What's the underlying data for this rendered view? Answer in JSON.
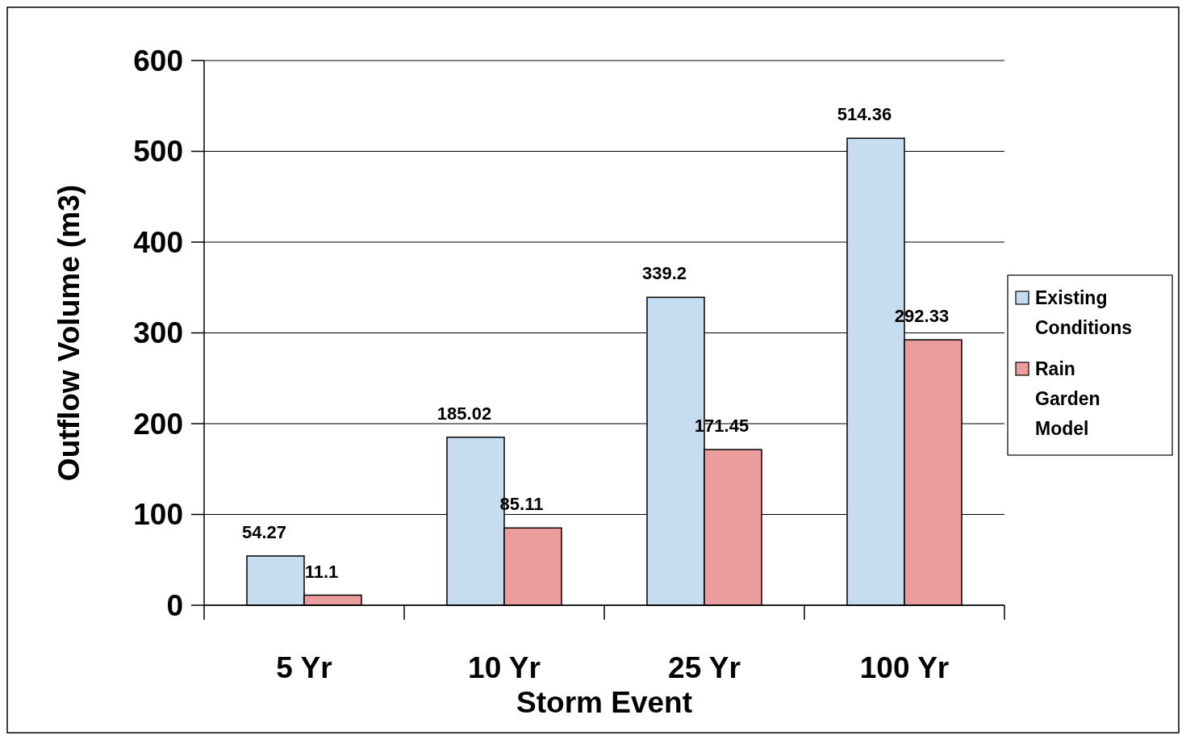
{
  "chart_data": {
    "type": "bar",
    "xlabel": "Storm Event",
    "ylabel": "Outflow Volume (m3)",
    "categories": [
      "5 Yr",
      "10 Yr",
      "25 Yr",
      "100 Yr"
    ],
    "series": [
      {
        "name": "Existing Conditions",
        "color": "#c6dcf0",
        "values": [
          54.27,
          185.02,
          339.2,
          514.36
        ]
      },
      {
        "name": "Rain Garden Model",
        "color": "#eb9c9c",
        "values": [
          11.1,
          85.11,
          171.45,
          292.33
        ]
      }
    ],
    "ylim": [
      0,
      600
    ],
    "yticks": [
      0,
      100,
      200,
      300,
      400,
      500,
      600
    ],
    "grid": "y",
    "legend": "right",
    "data_labels": true
  }
}
